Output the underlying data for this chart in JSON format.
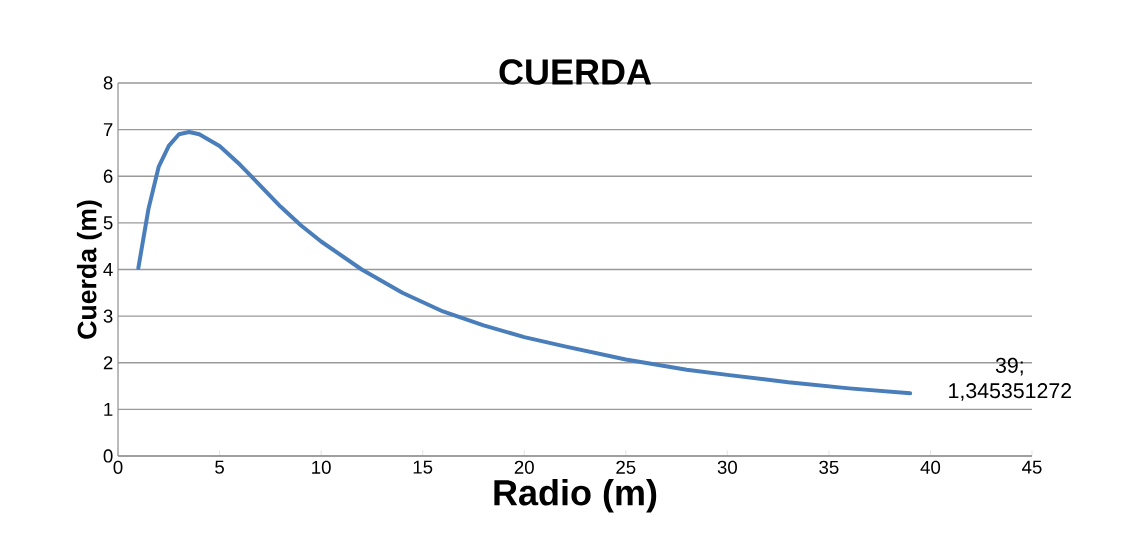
{
  "chart_data": {
    "type": "line",
    "title": "CUERDA",
    "xlabel": "Radio (m)",
    "ylabel": "Cuerda (m)",
    "x": [
      1,
      1.5,
      2,
      2.5,
      3,
      3.5,
      4,
      5,
      6,
      7,
      8,
      9,
      10,
      12,
      14,
      16,
      18,
      20,
      22,
      25,
      28,
      30,
      33,
      36,
      39
    ],
    "series": [
      {
        "color": "#4a7ebb",
        "values": [
          4.03,
          5.3,
          6.2,
          6.65,
          6.9,
          6.95,
          6.9,
          6.65,
          6.25,
          5.8,
          5.35,
          4.95,
          4.6,
          4.0,
          3.5,
          3.1,
          2.8,
          2.55,
          2.35,
          2.07,
          1.85,
          1.74,
          1.58,
          1.45,
          1.345351272
        ]
      }
    ],
    "xlim": [
      0,
      45
    ],
    "ylim": [
      0,
      8
    ],
    "xticks": [
      0,
      5,
      10,
      15,
      20,
      25,
      30,
      35,
      40,
      45
    ],
    "yticks": [
      0,
      1,
      2,
      3,
      4,
      5,
      6,
      7,
      8
    ],
    "grid": "y",
    "marker": "none",
    "line_style": "solid",
    "annotations": [
      {
        "text": "39; 1,345351272",
        "x": 39,
        "y": 1.345351272
      }
    ]
  }
}
